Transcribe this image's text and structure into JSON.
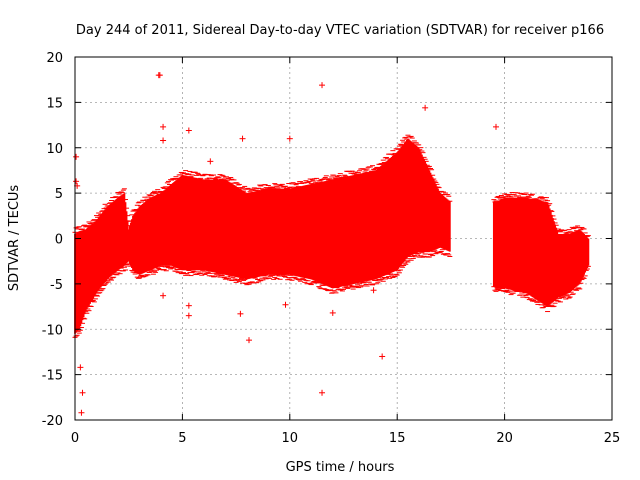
{
  "chart_data": {
    "type": "scatter",
    "title": "Day 244 of 2011, Sidereal Day-to-day VTEC variation (SDTVAR) for receiver p166",
    "xlabel": "GPS time / hours",
    "ylabel": "SDTVAR / TECUs",
    "xlim": [
      0,
      25
    ],
    "ylim": [
      -20,
      20
    ],
    "x_ticks": [
      0,
      5,
      10,
      15,
      20,
      25
    ],
    "y_ticks": [
      -20,
      -15,
      -10,
      -5,
      0,
      5,
      10,
      15,
      20
    ],
    "grid": true,
    "series_color": "#ff0000",
    "series": [
      {
        "name": "SDTVAR",
        "marker": "+",
        "envelope": {
          "x": [
            0.0,
            0.2,
            0.5,
            1.0,
            1.5,
            2.0,
            2.3,
            2.5,
            2.7,
            3.0,
            3.5,
            4.0,
            4.5,
            5.0,
            6.0,
            7.0,
            8.0,
            9.0,
            10.0,
            11.0,
            12.0,
            13.0,
            14.0,
            15.0,
            15.5,
            16.0,
            16.5,
            17.0,
            17.5,
            19.6,
            20.0,
            21.0,
            22.0,
            22.5,
            23.0,
            23.5,
            23.9
          ],
          "lower": [
            -10.5,
            -10.0,
            -8.0,
            -6.0,
            -4.5,
            -3.5,
            -3.0,
            -2.5,
            -3.5,
            -4.0,
            -3.5,
            -3.0,
            -3.0,
            -3.5,
            -3.5,
            -4.0,
            -4.5,
            -4.0,
            -4.0,
            -4.5,
            -5.5,
            -5.0,
            -4.5,
            -3.5,
            -2.0,
            -1.5,
            -1.5,
            -1.0,
            -1.5,
            -5.5,
            -5.5,
            -6.0,
            -7.5,
            -6.5,
            -6.0,
            -5.0,
            -3.0
          ],
          "upper": [
            0.5,
            0.8,
            1.0,
            2.0,
            3.5,
            4.5,
            5.0,
            1.0,
            2.5,
            3.5,
            4.5,
            5.0,
            6.0,
            7.0,
            6.5,
            6.5,
            5.0,
            5.5,
            5.5,
            6.0,
            6.5,
            7.0,
            7.5,
            9.5,
            11.0,
            10.0,
            7.5,
            5.0,
            4.0,
            4.0,
            4.5,
            4.5,
            4.0,
            0.5,
            0.5,
            1.0,
            0.0
          ]
        },
        "gaps": [
          [
            17.5,
            19.5
          ]
        ],
        "outliers": [
          [
            0.05,
            9.0
          ],
          [
            0.05,
            6.3
          ],
          [
            0.1,
            5.8
          ],
          [
            0.25,
            -14.2
          ],
          [
            0.3,
            -19.2
          ],
          [
            0.35,
            -17.0
          ],
          [
            3.9,
            18.0
          ],
          [
            3.95,
            18.0
          ],
          [
            4.1,
            12.3
          ],
          [
            4.1,
            10.8
          ],
          [
            4.1,
            -6.3
          ],
          [
            5.3,
            11.9
          ],
          [
            5.3,
            -7.4
          ],
          [
            5.3,
            -8.5
          ],
          [
            6.3,
            8.5
          ],
          [
            7.8,
            11.0
          ],
          [
            8.1,
            -11.2
          ],
          [
            7.7,
            -8.3
          ],
          [
            9.8,
            -7.3
          ],
          [
            10.0,
            11.0
          ],
          [
            11.5,
            16.9
          ],
          [
            11.5,
            -17.0
          ],
          [
            12.0,
            -8.2
          ],
          [
            13.9,
            -5.7
          ],
          [
            14.3,
            -13.0
          ],
          [
            16.3,
            14.4
          ],
          [
            19.6,
            12.3
          ]
        ]
      }
    ]
  }
}
